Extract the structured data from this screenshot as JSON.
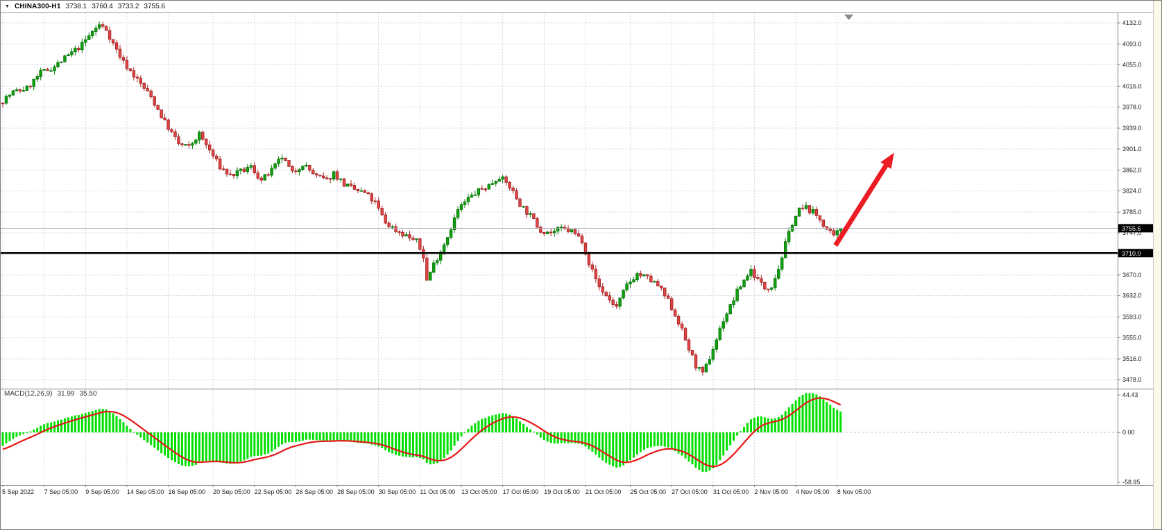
{
  "top_bar": {
    "symbol": "CHINA300-H1",
    "open": "3738.1",
    "high": "3760.4",
    "low": "3733.2",
    "close": "3755.6"
  },
  "colors": {
    "background": "#FFFFFF",
    "grid": "#D5D5E6",
    "axis_text": "#1a1a1a",
    "separator": "#808080",
    "up": "#10A010",
    "up_stroke": "#067006",
    "down": "#E04545",
    "down_stroke": "#9E1F1F",
    "wick_up": "#0A7D0A",
    "wick_down": "#A82525",
    "macd_hist": "#00DF00",
    "macd_signal": "#E81717",
    "support_line": "#000000",
    "bid_line": "#A9A9B5",
    "badge_bg": "#000000",
    "badge_text": "#FFFFFF",
    "arrow": "#EC1C24",
    "shift_marker": "#8a8a8a"
  },
  "chart_data": [
    {
      "type": "candlestick",
      "symbol": "CHINA300",
      "timeframe": "H1",
      "num_candles": 244,
      "last_close": 3755.6,
      "render_seed": 7,
      "ylim": [
        3461,
        4150
      ],
      "y_ticks": [
        4132.0,
        4093.0,
        4055.0,
        4016.0,
        3978.0,
        3939.0,
        3901.0,
        3862.0,
        3824.0,
        3785.0,
        3747.0,
        3708.0,
        3670.0,
        3632.0,
        3593.0,
        3555.0,
        3516.0,
        3478.0
      ],
      "x_ticks": [
        {
          "i": 0,
          "label": "5 Sep 2022"
        },
        {
          "i": 12,
          "label": "7 Sep 05:00"
        },
        {
          "i": 24,
          "label": "9 Sep 05:00"
        },
        {
          "i": 36,
          "label": "14 Sep 05:00"
        },
        {
          "i": 48,
          "label": "16 Sep 05:00"
        },
        {
          "i": 61,
          "label": "20 Sep 05:00"
        },
        {
          "i": 73,
          "label": "22 Sep 05:00"
        },
        {
          "i": 85,
          "label": "26 Sep 05:00"
        },
        {
          "i": 97,
          "label": "28 Sep 05:00"
        },
        {
          "i": 109,
          "label": "30 Sep 05:00"
        },
        {
          "i": 121,
          "label": "11 Oct 05:00"
        },
        {
          "i": 133,
          "label": "13 Oct 05:00"
        },
        {
          "i": 145,
          "label": "17 Oct 05:00"
        },
        {
          "i": 157,
          "label": "19 Oct 05:00"
        },
        {
          "i": 169,
          "label": "21 Oct 05:00"
        },
        {
          "i": 182,
          "label": "25 Oct 05:00"
        },
        {
          "i": 194,
          "label": "27 Oct 05:00"
        },
        {
          "i": 206,
          "label": "31 Oct 05:00"
        },
        {
          "i": 218,
          "label": "2 Nov 05:00"
        },
        {
          "i": 230,
          "label": "4 Nov 05:00"
        },
        {
          "i": 242,
          "label": "8 Nov 05:00"
        }
      ],
      "price_path": [
        [
          0,
          3985
        ],
        [
          4,
          4005
        ],
        [
          8,
          4012
        ],
        [
          12,
          4040
        ],
        [
          16,
          4052
        ],
        [
          20,
          4072
        ],
        [
          24,
          4092
        ],
        [
          27,
          4116
        ],
        [
          29,
          4128
        ],
        [
          31,
          4120
        ],
        [
          33,
          4094
        ],
        [
          36,
          4060
        ],
        [
          40,
          4028
        ],
        [
          44,
          3996
        ],
        [
          48,
          3950
        ],
        [
          52,
          3910
        ],
        [
          55,
          3904
        ],
        [
          58,
          3928
        ],
        [
          61,
          3898
        ],
        [
          64,
          3868
        ],
        [
          67,
          3852
        ],
        [
          70,
          3859
        ],
        [
          73,
          3868
        ],
        [
          76,
          3843
        ],
        [
          79,
          3861
        ],
        [
          82,
          3886
        ],
        [
          85,
          3856
        ],
        [
          88,
          3874
        ],
        [
          92,
          3850
        ],
        [
          95,
          3843
        ],
        [
          97,
          3857
        ],
        [
          100,
          3836
        ],
        [
          103,
          3826
        ],
        [
          106,
          3820
        ],
        [
          109,
          3802
        ],
        [
          112,
          3766
        ],
        [
          115,
          3752
        ],
        [
          118,
          3742
        ],
        [
          121,
          3731
        ],
        [
          123,
          3704
        ],
        [
          124,
          3660
        ],
        [
          126,
          3690
        ],
        [
          128,
          3714
        ],
        [
          130,
          3741
        ],
        [
          133,
          3789
        ],
        [
          136,
          3810
        ],
        [
          139,
          3824
        ],
        [
          142,
          3834
        ],
        [
          145,
          3851
        ],
        [
          148,
          3832
        ],
        [
          151,
          3800
        ],
        [
          154,
          3778
        ],
        [
          157,
          3752
        ],
        [
          160,
          3748
        ],
        [
          163,
          3754
        ],
        [
          166,
          3750
        ],
        [
          169,
          3734
        ],
        [
          171,
          3692
        ],
        [
          174,
          3648
        ],
        [
          177,
          3624
        ],
        [
          179,
          3611
        ],
        [
          182,
          3651
        ],
        [
          185,
          3672
        ],
        [
          188,
          3664
        ],
        [
          191,
          3650
        ],
        [
          194,
          3622
        ],
        [
          197,
          3584
        ],
        [
          200,
          3534
        ],
        [
          202,
          3504
        ],
        [
          204,
          3487
        ],
        [
          206,
          3518
        ],
        [
          208,
          3552
        ],
        [
          210,
          3588
        ],
        [
          212,
          3612
        ],
        [
          214,
          3639
        ],
        [
          216,
          3661
        ],
        [
          218,
          3679
        ],
        [
          220,
          3661
        ],
        [
          222,
          3646
        ],
        [
          224,
          3651
        ],
        [
          226,
          3682
        ],
        [
          228,
          3726
        ],
        [
          230,
          3766
        ],
        [
          232,
          3789
        ],
        [
          234,
          3793
        ],
        [
          236,
          3785
        ],
        [
          238,
          3772
        ],
        [
          240,
          3753
        ],
        [
          242,
          3739
        ],
        [
          244,
          3755.6
        ]
      ],
      "support_line": {
        "price": 3710.0,
        "label": "3710.0"
      },
      "bid": {
        "price": 3755.6,
        "label": "3755.6"
      },
      "arrow": {
        "from_index": 241.5,
        "from_price": 3724,
        "to_index": 258.5,
        "to_price": 3894
      }
    },
    {
      "type": "macd",
      "title": "MACD(12,26,9)",
      "value_main": "31.99",
      "value_signal": "35.50",
      "params": {
        "fast": 12,
        "slow": 26,
        "signal": 9
      },
      "y_ticks": [
        44.43,
        0.0,
        -58.95
      ],
      "ylim": [
        -58.95,
        44.43
      ]
    }
  ]
}
